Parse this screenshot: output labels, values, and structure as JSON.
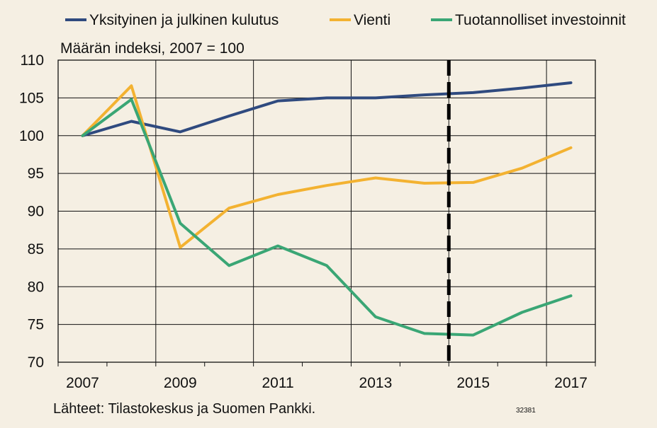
{
  "chart_data": {
    "type": "line",
    "subtitle": "Määrän indeksi, 2007 = 100",
    "source": "Lähteet: Tilastokeskus ja Suomen Pankki.",
    "code": "32381",
    "x": [
      2007,
      2008,
      2009,
      2010,
      2011,
      2012,
      2013,
      2014,
      2015,
      2016,
      2017
    ],
    "x_tick_labels": [
      "2007",
      "2009",
      "2011",
      "2013",
      "2015",
      "2017"
    ],
    "ylim": [
      70,
      110
    ],
    "y_ticks": [
      70,
      75,
      80,
      85,
      90,
      95,
      100,
      105,
      110
    ],
    "grid": true,
    "legend_position": "top",
    "forecast_divider_x": 2014.5,
    "series": [
      {
        "name": "Yksityinen ja julkinen kulutus",
        "color": "#2f4a7f",
        "values": [
          100,
          101.9,
          100.5,
          102.6,
          104.6,
          105.0,
          105.0,
          105.4,
          105.7,
          106.3,
          107.0
        ]
      },
      {
        "name": "Vienti",
        "color": "#f3b231",
        "values": [
          100,
          106.6,
          85.2,
          90.4,
          92.2,
          93.4,
          94.4,
          93.7,
          93.8,
          95.7,
          98.4
        ]
      },
      {
        "name": "Tuotannolliset investoinnit",
        "color": "#3aa675",
        "values": [
          100,
          104.8,
          88.4,
          82.8,
          85.4,
          82.8,
          76.0,
          73.8,
          73.6,
          76.6,
          78.8
        ]
      }
    ]
  }
}
